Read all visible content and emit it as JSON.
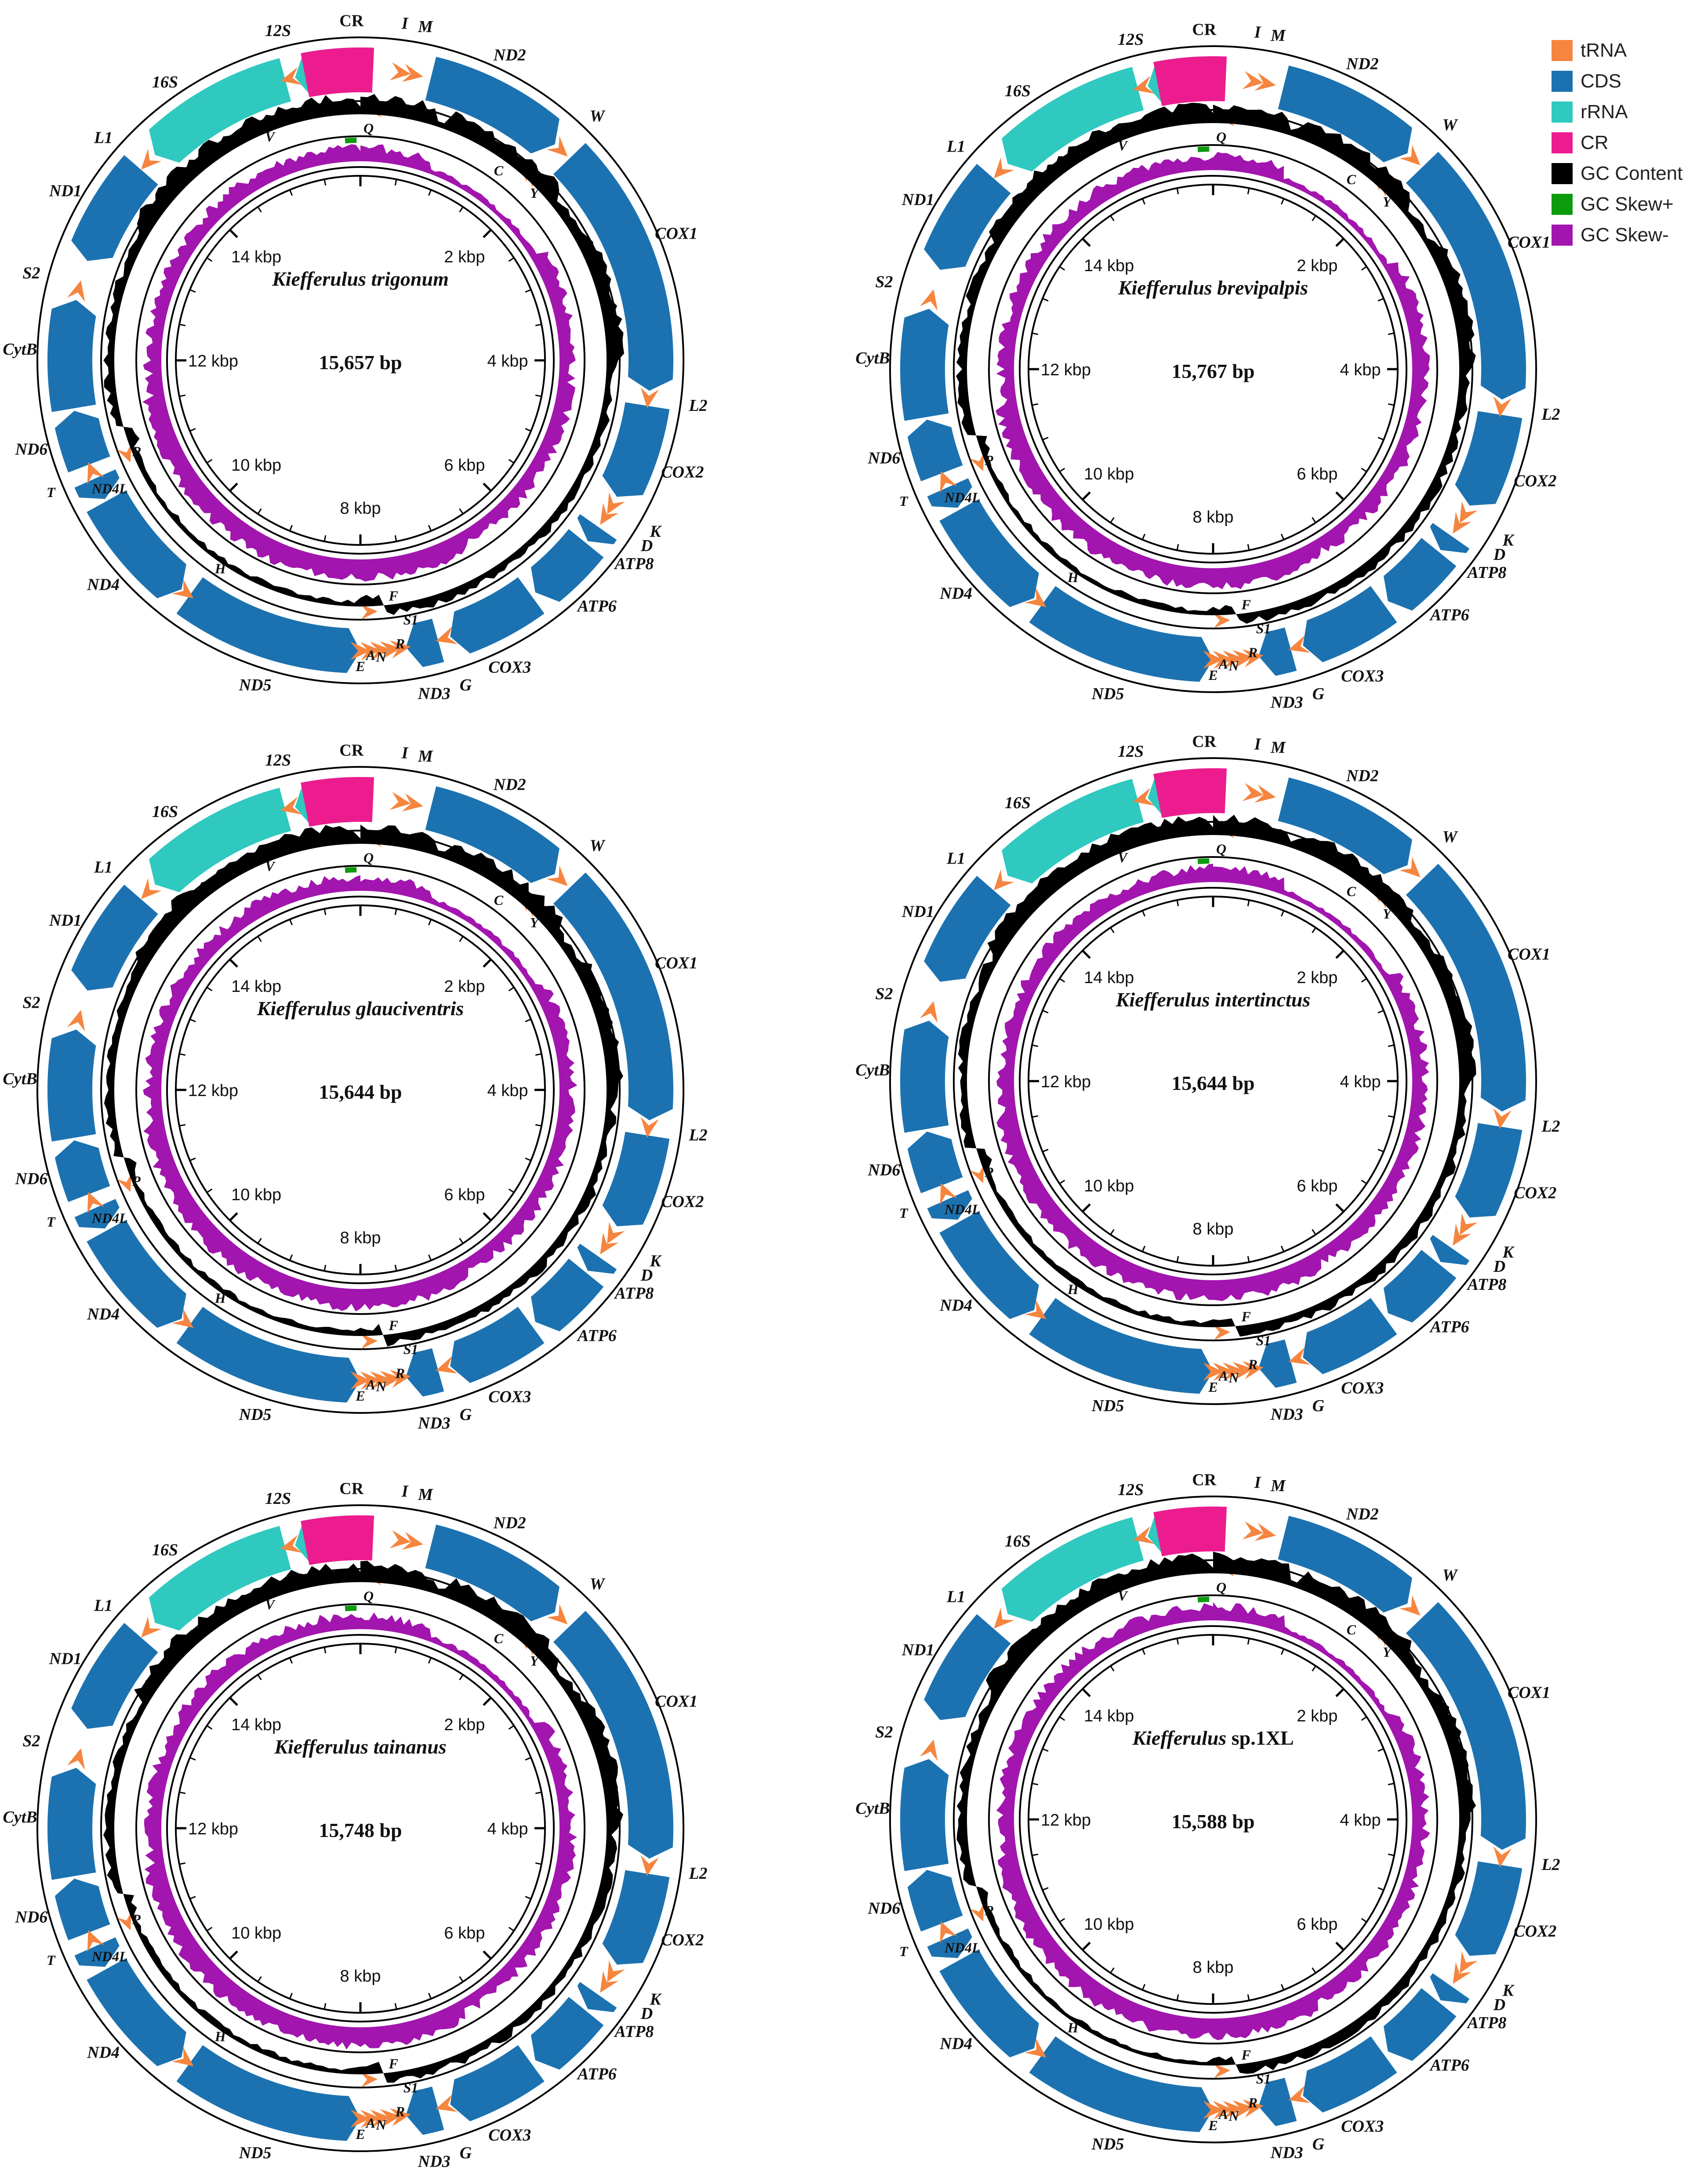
{
  "legend": [
    {
      "label": "tRNA",
      "color": "#F5853F"
    },
    {
      "label": "CDS",
      "color": "#1C72B0"
    },
    {
      "label": "rRNA",
      "color": "#2FC9C0"
    },
    {
      "label": "CR",
      "color": "#EC1C8E"
    },
    {
      "label": "GC Content",
      "color": "#000000"
    },
    {
      "label": "GC Skew+",
      "color": "#0C9B0C"
    },
    {
      "label": "GC Skew-",
      "color": "#A215AE"
    }
  ],
  "genome_scale_labels": [
    "2 kbp",
    "4 kbp",
    "6 kbp",
    "8 kbp",
    "10 kbp",
    "12 kbp",
    "14 kbp"
  ],
  "gene_labels": {
    "CR": "CR",
    "I": "I",
    "M": "M",
    "ND2": "ND2",
    "W": "W",
    "Q": "Q",
    "C": "C",
    "Y": "Y",
    "COX1": "COX1",
    "L2": "L2",
    "COX2": "COX2",
    "K": "K",
    "D": "D",
    "ATP8": "ATP8",
    "ATP6": "ATP6",
    "COX3": "COX3",
    "G": "G",
    "ND3": "ND3",
    "A": "A",
    "R": "R",
    "N": "N",
    "S1": "S1",
    "E": "E",
    "F": "F",
    "ND5": "ND5",
    "H": "H",
    "ND4": "ND4",
    "ND4L": "ND4L",
    "T": "T",
    "P": "P",
    "ND6": "ND6",
    "CytB": "CytB",
    "S2": "S2",
    "ND1": "ND1",
    "L1": "L1",
    "16S": "16S",
    "V": "V",
    "12S": "12S"
  },
  "genomes": [
    {
      "species": "Kiefferulus trigonum",
      "species_suffix": "",
      "size": "15,657 bp"
    },
    {
      "species": "Kiefferulus brevipalpis",
      "species_suffix": "",
      "size": "15,767 bp"
    },
    {
      "species": "Kiefferulus glauciventris",
      "species_suffix": "",
      "size": "15,644 bp"
    },
    {
      "species": "Kiefferulus intertinctus",
      "species_suffix": "",
      "size": "15,644 bp"
    },
    {
      "species": "Kiefferulus tainanus",
      "species_suffix": "",
      "size": "15,748 bp"
    },
    {
      "species": "Kiefferulus",
      "species_suffix": " sp.1XL",
      "size": "15,588 bp"
    }
  ]
}
